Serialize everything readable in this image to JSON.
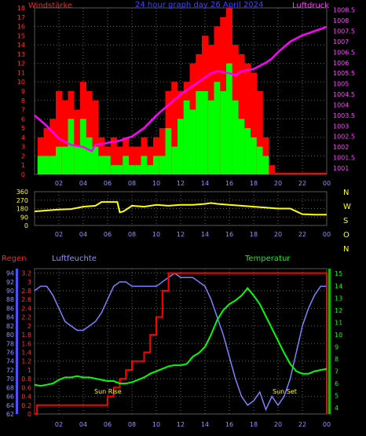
{
  "chart_data": [
    {
      "type": "bar+line",
      "title": "24 hour graph day  26 April 2024",
      "left_label": "Windstärke",
      "right_label": "Luftdruck",
      "x_ticks": [
        "02",
        "04",
        "06",
        "08",
        "10",
        "12",
        "14",
        "16",
        "18",
        "20",
        "22",
        "00"
      ],
      "left_ticks": [
        "0",
        "1",
        "2",
        "3",
        "4",
        "5",
        "6",
        "7",
        "8",
        "9",
        "10",
        "11",
        "12",
        "13",
        "14",
        "15",
        "16",
        "17",
        "18"
      ],
      "right_ticks": [
        "1001",
        "1001.5",
        "1002",
        "1002.5",
        "1003",
        "1003.5",
        "1004",
        "1004.5",
        "1005",
        "1005.5",
        "1006",
        "1006.5",
        "1007",
        "1007.5",
        "1008",
        "1008.5"
      ],
      "ylim_left": [
        0,
        18
      ],
      "ylim_right": [
        1000.7,
        1008.6
      ],
      "series": [
        {
          "name": "Luftdruck",
          "color": "#ff00ff",
          "x": [
            0,
            1,
            2,
            3,
            4,
            4.7,
            5,
            6,
            7,
            8,
            9,
            10,
            11,
            12,
            13,
            14,
            14.5,
            15,
            16,
            16.5,
            17,
            18,
            19,
            19.5,
            20,
            21,
            22,
            23,
            24
          ],
          "y": [
            1003.5,
            1003.0,
            1002.4,
            1002.1,
            1002.0,
            1001.8,
            1002.1,
            1002.2,
            1002.3,
            1002.5,
            1002.9,
            1003.5,
            1004.0,
            1004.5,
            1004.9,
            1005.3,
            1005.5,
            1005.6,
            1005.5,
            1005.4,
            1005.6,
            1005.7,
            1006.0,
            1006.2,
            1006.5,
            1007.0,
            1007.3,
            1007.5,
            1007.7
          ]
        }
      ],
      "windbars": {
        "color_max": "#ff0000",
        "color_avg": "#00ff00",
        "x": [
          0.5,
          1,
          1.5,
          2,
          2.5,
          3,
          3.5,
          4,
          4.5,
          5,
          5.5,
          6,
          6.5,
          7,
          7.5,
          8,
          8.5,
          9,
          9.5,
          10,
          10.5,
          11,
          11.5,
          12,
          12.5,
          13,
          13.5,
          14,
          14.5,
          15,
          15.5,
          16,
          16.5,
          17,
          17.5,
          18,
          18.5,
          19,
          19.5
        ],
        "max": [
          4,
          5,
          6,
          9,
          8,
          9,
          7,
          10,
          9,
          8,
          4,
          3,
          4,
          3,
          4,
          3,
          3,
          4,
          3,
          4,
          5,
          9,
          10,
          9,
          10,
          12,
          13,
          15,
          14,
          16,
          17,
          18,
          14,
          13,
          12,
          11,
          9,
          4,
          1
        ],
        "avg": [
          2,
          2,
          2,
          3,
          3,
          6,
          3,
          6,
          4,
          3,
          2,
          2,
          1,
          1,
          2,
          1,
          1,
          2,
          1,
          2,
          2,
          5,
          3,
          6,
          8,
          7,
          9,
          9,
          8,
          10,
          9,
          12,
          8,
          6,
          5,
          4,
          3,
          2,
          0
        ]
      }
    },
    {
      "type": "line",
      "title": "",
      "right_label": "NWSON",
      "x_ticks": [
        "02",
        "04",
        "06",
        "08",
        "10",
        "12",
        "14",
        "16",
        "18",
        "20",
        "22",
        "00"
      ],
      "y_ticks": [
        "0",
        "90",
        "180",
        "270",
        "360"
      ],
      "ylim": [
        0,
        360
      ],
      "series": [
        {
          "name": "Windrichtung",
          "color": "#ffff00",
          "x": [
            0,
            1,
            2,
            3,
            4,
            5,
            5.5,
            6,
            6.8,
            7,
            7.3,
            8,
            9,
            10,
            11,
            12,
            13,
            14,
            14.5,
            15,
            16,
            17,
            18,
            19,
            20,
            21,
            21.5,
            22,
            23,
            24
          ],
          "y": [
            150,
            160,
            170,
            175,
            200,
            210,
            250,
            250,
            250,
            140,
            150,
            210,
            200,
            220,
            210,
            220,
            220,
            230,
            240,
            230,
            220,
            210,
            200,
            190,
            180,
            180,
            150,
            120,
            115,
            115
          ]
        }
      ]
    },
    {
      "type": "line",
      "title": "",
      "labels": [
        "Regen",
        "Luftfeuchte",
        "Temperatur"
      ],
      "x_ticks": [
        "02",
        "04",
        "06",
        "08",
        "10",
        "12",
        "14",
        "16",
        "18",
        "20",
        "22",
        "00"
      ],
      "humidity_ticks": [
        "62",
        "64",
        "66",
        "68",
        "70",
        "72",
        "74",
        "76",
        "78",
        "80",
        "82",
        "84",
        "86",
        "88",
        "90",
        "92",
        "94"
      ],
      "rain_ticks": [
        "0",
        "0.2",
        "0.4",
        "0.6",
        "0.8",
        "1",
        "1.2",
        "1.4",
        "1.6",
        "1.8",
        "2",
        "2.2",
        "2.4",
        "2.6",
        "2.8",
        "3",
        "3.2"
      ],
      "temp_ticks": [
        "4",
        "5",
        "6",
        "7",
        "8",
        "9",
        "10",
        "11",
        "12",
        "13",
        "14",
        "15"
      ],
      "annotations": [
        "Sun Rise",
        "Sun Set"
      ],
      "ylim_humidity": [
        62,
        95
      ],
      "ylim_rain": [
        0,
        3.3
      ],
      "ylim_temp": [
        3.5,
        15.4
      ],
      "series": [
        {
          "name": "Luftfeuchte",
          "color": "#8080ff",
          "x": [
            0,
            0.5,
            1,
            1.5,
            2,
            2.5,
            3,
            3.5,
            4,
            4.5,
            5,
            5.5,
            6,
            6.5,
            7,
            7.5,
            8,
            8.5,
            9,
            9.5,
            10,
            10.5,
            11,
            11.5,
            12,
            12.5,
            13,
            13.5,
            14,
            14.5,
            15,
            15.5,
            16,
            16.5,
            17,
            17.5,
            18,
            18.5,
            19,
            19.5,
            20,
            20.5,
            21,
            21.5,
            22,
            22.5,
            23,
            23.5,
            24
          ],
          "y": [
            90,
            91,
            91,
            89,
            86,
            83,
            82,
            81,
            81,
            82,
            83,
            85,
            88,
            91,
            92,
            92,
            91,
            91,
            91,
            91,
            91,
            92,
            93,
            94,
            93,
            93,
            93,
            92,
            91,
            88,
            84,
            80,
            75,
            70,
            66,
            64,
            65,
            67,
            63,
            66,
            64,
            66,
            70,
            76,
            82,
            86,
            89,
            91,
            91
          ]
        },
        {
          "name": "Regen",
          "color": "#ff0000",
          "x": [
            0,
            0.2,
            0.2,
            6,
            6,
            6.5,
            6.5,
            7,
            7,
            7.5,
            7.5,
            8,
            8,
            9,
            9,
            9.5,
            9.5,
            10,
            10,
            10.5,
            10.5,
            11,
            11,
            24,
            24
          ],
          "y": [
            0,
            0,
            0.2,
            0.2,
            0.4,
            0.4,
            0.6,
            0.6,
            0.8,
            0.8,
            1.0,
            1.0,
            1.2,
            1.2,
            1.4,
            1.4,
            1.8,
            1.8,
            2.2,
            2.2,
            2.8,
            2.8,
            3.2,
            3.2,
            0
          ]
        },
        {
          "name": "Temperatur",
          "color": "#00ff00",
          "x": [
            0,
            0.5,
            1,
            1.5,
            2,
            2.5,
            3,
            3.5,
            4,
            4.5,
            5,
            5.5,
            6,
            6.5,
            7,
            7.5,
            8,
            8.5,
            9,
            9.5,
            10,
            10.5,
            11,
            11.5,
            12,
            12.5,
            13,
            13.5,
            14,
            14.5,
            15,
            15.5,
            16,
            16.5,
            17,
            17.5,
            18,
            18.5,
            19,
            19.5,
            20,
            20.5,
            21,
            21.5,
            22,
            22.5,
            23,
            23.5,
            24
          ],
          "y": [
            5.9,
            5.8,
            5.9,
            6.0,
            6.3,
            6.5,
            6.5,
            6.6,
            6.5,
            6.5,
            6.4,
            6.3,
            6.2,
            6.2,
            6.0,
            6.0,
            6.1,
            6.3,
            6.5,
            6.8,
            7.0,
            7.2,
            7.4,
            7.5,
            7.5,
            7.6,
            8.2,
            8.5,
            9.0,
            10.0,
            11.2,
            12.0,
            12.5,
            12.8,
            13.2,
            13.8,
            13.2,
            12.5,
            11.5,
            10.5,
            9.5,
            8.5,
            7.6,
            7.0,
            6.8,
            6.8,
            7.0,
            7.1,
            7.2
          ]
        }
      ]
    }
  ]
}
